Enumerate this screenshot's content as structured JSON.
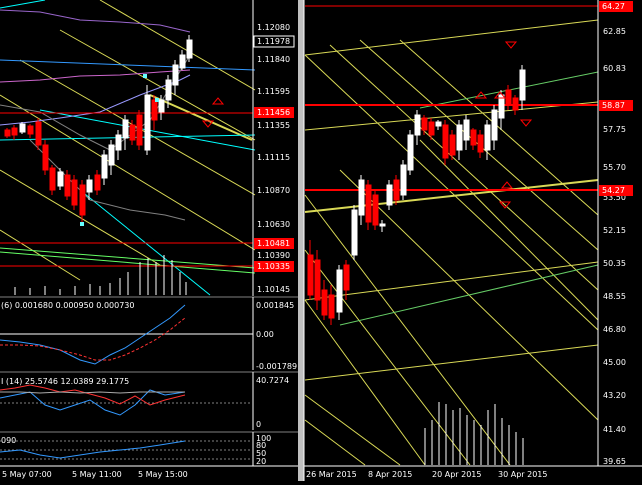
{
  "left_chart": {
    "price_ticks": [
      "1.12080",
      "1.11840",
      "1.11595",
      "1.11355",
      "1.11115",
      "1.10870",
      "1.10630",
      "1.10390",
      "1.10145"
    ],
    "current_price": "1.11978",
    "level_red_1": "1.11456",
    "level_red_2": "1.10481",
    "level_red_3": "1.10335",
    "time_labels": [
      "5 May 07:00",
      "5 May 11:00",
      "5 May 15:00"
    ],
    "macd": {
      "label": "(6) 0.001680 0.000950 0.000730",
      "ticks": [
        "0.001845",
        "0.00",
        "-0.001789"
      ]
    },
    "adx": {
      "label": "I (14) 25.5746 12.0389 29.1775",
      "ticks": [
        "40.7274",
        "0"
      ]
    },
    "stoch": {
      "label": "090",
      "ticks": [
        "100",
        "80",
        "50",
        "20"
      ]
    }
  },
  "right_chart": {
    "price_ticks": [
      "62.85",
      "60.83",
      "57.75",
      "55.70",
      "53.50",
      "52.15",
      "50.35",
      "48.55",
      "46.80",
      "45.00",
      "43.20",
      "41.40",
      "39.65"
    ],
    "level_top": "64.27",
    "level_mid": "58.87",
    "level_low": "54.27",
    "time_labels": [
      "26 Mar 2015",
      "8 Apr 2015",
      "20 Apr 2015",
      "30 Apr 2015"
    ]
  },
  "colors": {
    "background": "#000000",
    "bull": "#ffffff",
    "bear": "#ff0000",
    "level": "#ff0000",
    "channel": "#ffff66",
    "trend_cyan": "#00ffff",
    "trend_green": "#00ff00",
    "bollinger": "#808080",
    "macd_main": "#3399ff",
    "macd_signal": "#ff3333",
    "stoch": "#3399ff",
    "arrow": "#ff0000"
  }
}
